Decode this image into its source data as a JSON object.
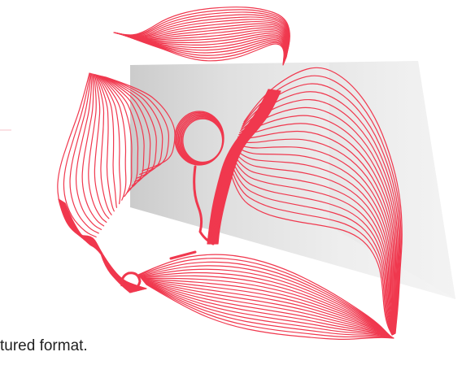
{
  "caption": {
    "text": "tured format."
  },
  "colors": {
    "background": "#ffffff",
    "panel_light": "#f2f2f2",
    "panel_dark": "#c9c9c9",
    "line_accent": "#f0384e",
    "faint_rule": "#f7c3c9",
    "caption_text": "#1f1f1f"
  },
  "illustration": {
    "kind": "abstract-contour-line-art",
    "stroke_layers": 20
  }
}
